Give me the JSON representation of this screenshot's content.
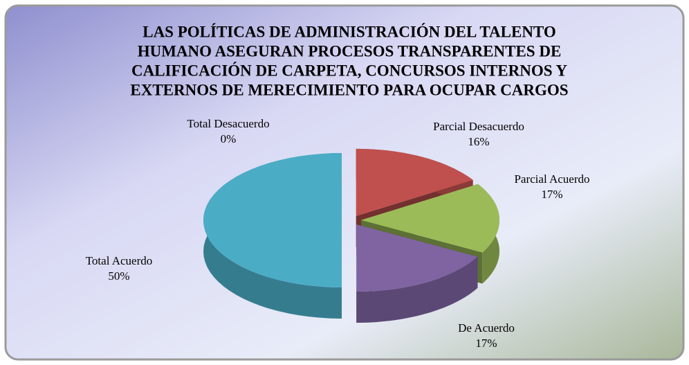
{
  "chart_data": {
    "type": "pie",
    "title": [
      "LAS POLÍTICAS DE ADMINISTRACIÓN DEL TALENTO",
      "HUMANO ASEGURAN  PROCESOS  TRANSPARENTES DE",
      "CALIFICACIÓN DE CARPETA, CONCURSOS  INTERNOS Y",
      "EXTERNOS DE MERECIMIENTO PARA OCUPAR CARGOS"
    ],
    "categories": [
      "Total Desacuerdo",
      "Parcial Desacuerdo",
      "Parcial Acuerdo",
      "De Acuerdo",
      "Total Acuerdo"
    ],
    "values": [
      0,
      16,
      17,
      17,
      50
    ],
    "value_labels": [
      "0%",
      "16%",
      "17%",
      "17%",
      "50%"
    ],
    "colors": [
      "#4f81bd",
      "#c0504d",
      "#9bbb59",
      "#8064a2",
      "#4bacc6"
    ]
  }
}
